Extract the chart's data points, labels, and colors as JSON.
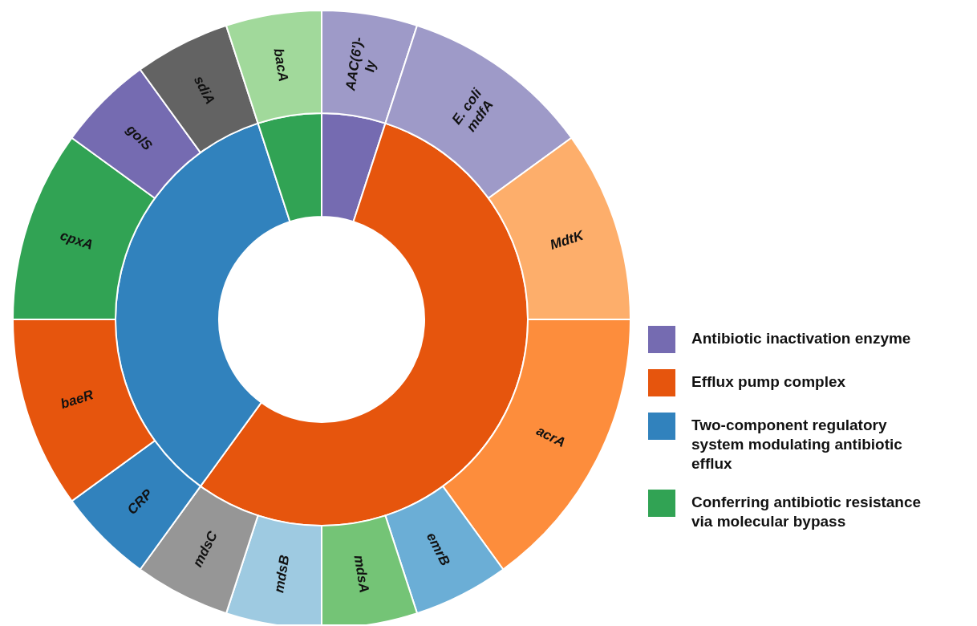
{
  "chart_data": [
    {
      "type": "donut",
      "categories": [
        "Antibiotic inactivation enzyme",
        "Efflux pump complex",
        "Two-component regulatory system modulating antibiotic efflux",
        "Conferring antibiotic resistance via molecular bypass"
      ],
      "values": [
        5,
        55,
        35,
        5
      ],
      "colors": [
        "#756bb1",
        "#e6550d",
        "#3182bd",
        "#31a354"
      ],
      "legend": "right"
    },
    {
      "type": "donut",
      "categories": [
        "AAC(6')-Iy",
        "E. coli mdfA",
        "MdtK",
        "acrA",
        "emrB",
        "mdsA",
        "mdsB",
        "mdsC",
        "CRP",
        "baeR",
        "cpxA",
        "golS",
        "sdiA",
        "bacA"
      ],
      "values": [
        5,
        10,
        10,
        15,
        5,
        5,
        5,
        5,
        5,
        10,
        10,
        5,
        5,
        5
      ],
      "colors": [
        "#9e9ac8",
        "#9e9ac8",
        "#fdae6b",
        "#fd8d3c",
        "#6baed6",
        "#74c476",
        "#9ecae1",
        "#969696",
        "#3182bd",
        "#e6550d",
        "#31a354",
        "#756bb1",
        "#636363",
        "#a1d99b"
      ]
    }
  ]
}
